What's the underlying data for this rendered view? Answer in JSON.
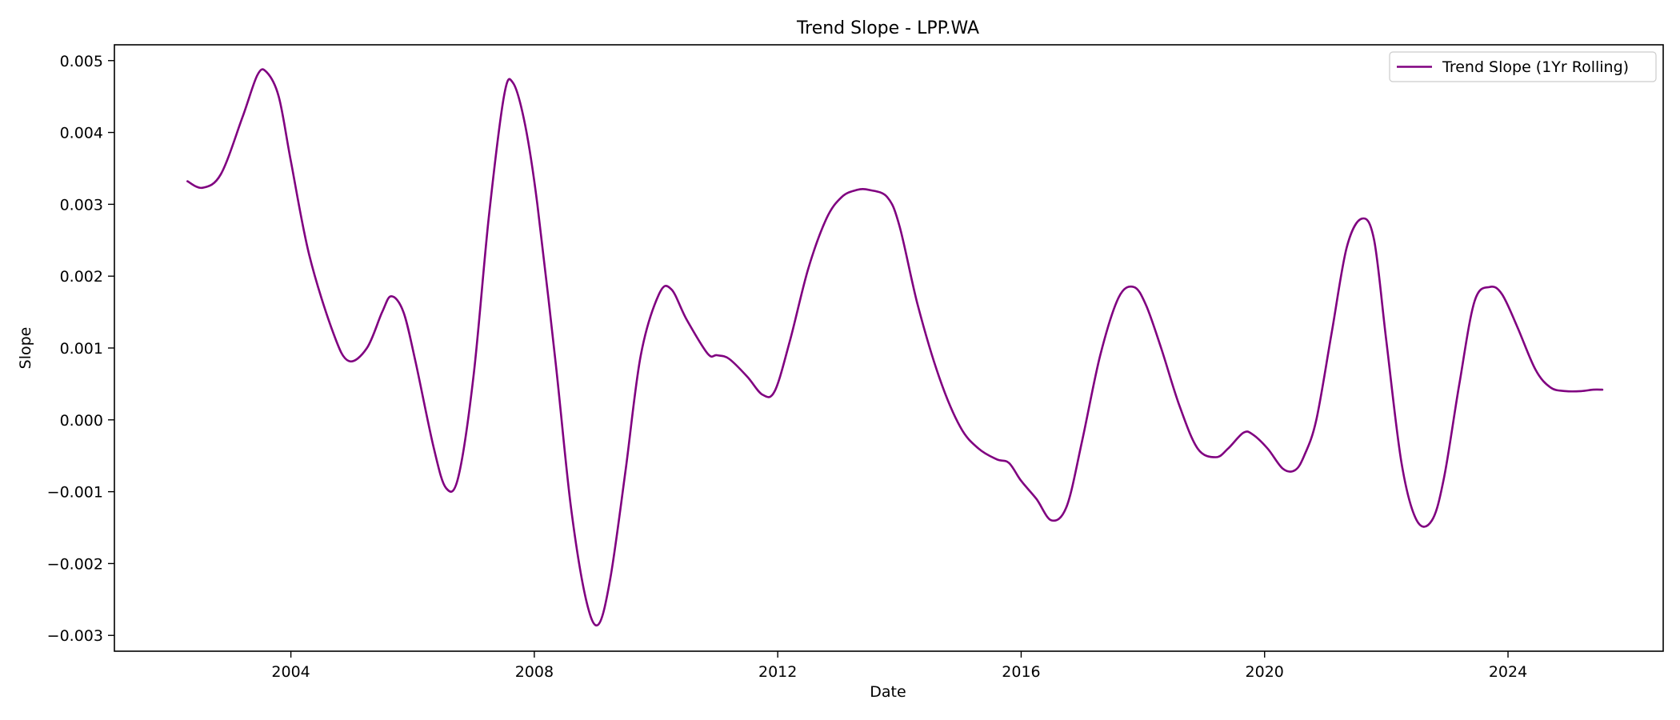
{
  "chart_data": {
    "type": "line",
    "title": "Trend Slope - LPP.WA",
    "xlabel": "Date",
    "ylabel": "Slope",
    "xlim": [
      2001.1,
      2026.55
    ],
    "ylim": [
      -0.00322,
      0.00522
    ],
    "x_ticks": [
      2004,
      2008,
      2012,
      2016,
      2020,
      2024
    ],
    "x_tick_labels": [
      "2004",
      "2008",
      "2012",
      "2016",
      "2020",
      "2024"
    ],
    "y_ticks": [
      -0.003,
      -0.002,
      -0.001,
      0.0,
      0.001,
      0.002,
      0.003,
      0.004,
      0.005
    ],
    "y_tick_labels": [
      "−0.003",
      "−0.002",
      "−0.001",
      "0.000",
      "0.001",
      "0.002",
      "0.003",
      "0.004",
      "0.005"
    ],
    "grid": false,
    "legend_position": "top-right",
    "series": [
      {
        "name": "Trend Slope (1Yr Rolling)",
        "color": "#800080",
        "x": [
          2002.3,
          2002.55,
          2002.85,
          2003.2,
          2003.45,
          2003.6,
          2003.8,
          2004.0,
          2004.3,
          2004.7,
          2004.95,
          2005.25,
          2005.5,
          2005.65,
          2005.85,
          2006.05,
          2006.35,
          2006.55,
          2006.75,
          2007.0,
          2007.25,
          2007.5,
          2007.65,
          2007.85,
          2008.05,
          2008.35,
          2008.6,
          2008.85,
          2009.05,
          2009.25,
          2009.5,
          2009.75,
          2010.05,
          2010.25,
          2010.5,
          2010.85,
          2011.0,
          2011.2,
          2011.5,
          2011.75,
          2011.95,
          2012.2,
          2012.5,
          2012.8,
          2013.05,
          2013.3,
          2013.5,
          2013.8,
          2014.0,
          2014.3,
          2014.65,
          2015.0,
          2015.3,
          2015.6,
          2015.8,
          2016.0,
          2016.25,
          2016.5,
          2016.75,
          2017.0,
          2017.3,
          2017.6,
          2017.85,
          2018.05,
          2018.3,
          2018.6,
          2018.9,
          2019.2,
          2019.4,
          2019.65,
          2019.8,
          2020.05,
          2020.3,
          2020.5,
          2020.65,
          2020.85,
          2021.1,
          2021.35,
          2021.6,
          2021.8,
          2022.0,
          2022.25,
          2022.5,
          2022.75,
          2022.95,
          2023.2,
          2023.45,
          2023.7,
          2023.9,
          2024.15,
          2024.45,
          2024.7,
          2024.95,
          2025.2,
          2025.4,
          2025.55
        ],
        "y": [
          0.00332,
          0.00323,
          0.00342,
          0.0042,
          0.0048,
          0.00484,
          0.0045,
          0.0036,
          0.0023,
          0.0012,
          0.00082,
          0.001,
          0.0015,
          0.00172,
          0.0015,
          0.0008,
          -0.0004,
          -0.00095,
          -0.0008,
          0.0006,
          0.0028,
          0.0045,
          0.00469,
          0.0041,
          0.003,
          0.0008,
          -0.0012,
          -0.0025,
          -0.00285,
          -0.0022,
          -0.0007,
          0.0009,
          0.00175,
          0.00182,
          0.0014,
          0.00092,
          0.0009,
          0.00085,
          0.0006,
          0.00035,
          0.0004,
          0.0011,
          0.0021,
          0.0028,
          0.0031,
          0.0032,
          0.0032,
          0.0031,
          0.0027,
          0.0016,
          0.0006,
          -0.0001,
          -0.0004,
          -0.00055,
          -0.0006,
          -0.00085,
          -0.0011,
          -0.0014,
          -0.0012,
          -0.0003,
          0.0009,
          0.0017,
          0.00185,
          0.0016,
          0.001,
          0.0002,
          -0.0004,
          -0.00052,
          -0.0004,
          -0.00018,
          -0.0002,
          -0.0004,
          -0.00068,
          -0.0007,
          -0.0005,
          0.0,
          0.0012,
          0.0024,
          0.0028,
          0.0025,
          0.0011,
          -0.0006,
          -0.0014,
          -0.0014,
          -0.0008,
          0.0005,
          0.00165,
          0.00185,
          0.00175,
          0.0013,
          0.0007,
          0.00045,
          0.0004,
          0.0004,
          0.00042,
          0.00042
        ]
      }
    ]
  }
}
